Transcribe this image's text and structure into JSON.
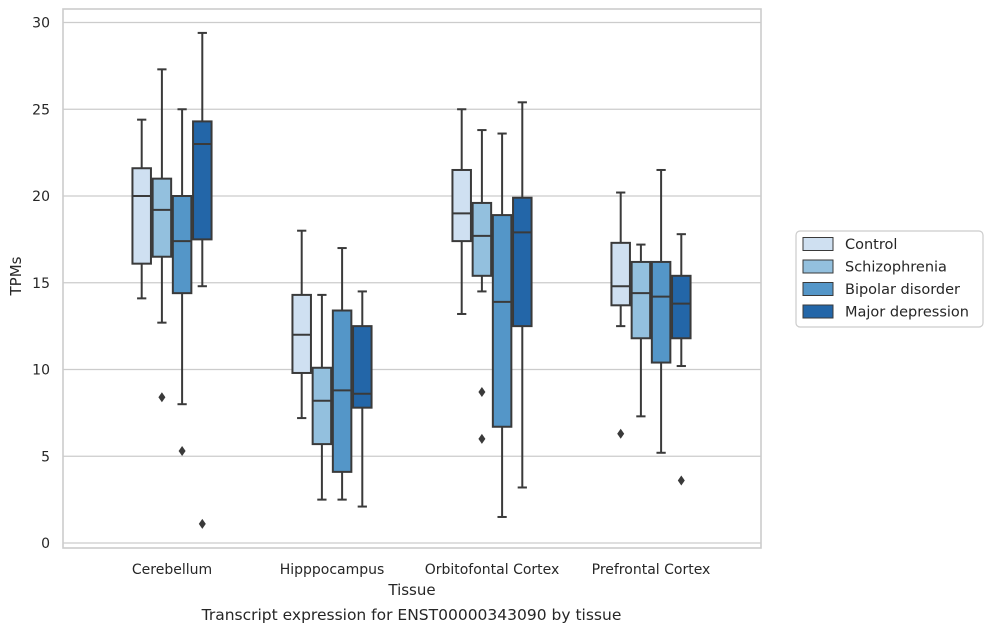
{
  "chart_data": {
    "type": "box",
    "xlabel": "Tissue",
    "ylabel": "TPMs",
    "ylim": [
      0,
      30
    ],
    "yticks": [
      0,
      5,
      10,
      15,
      20,
      25,
      30
    ],
    "grid": true,
    "legend_position": "right",
    "categories": [
      "Cerebellum",
      "Hipppocampus",
      "Orbitofontal Cortex",
      "Prefrontal Cortex"
    ],
    "series": [
      {
        "name": "Control",
        "color": "#cfe0f1",
        "boxes": [
          {
            "whislo": 14.1,
            "q1": 16.1,
            "med": 20.0,
            "q3": 21.6,
            "whishi": 24.4,
            "fliers": []
          },
          {
            "whislo": 7.2,
            "q1": 9.8,
            "med": 12.0,
            "q3": 14.3,
            "whishi": 18.0,
            "fliers": []
          },
          {
            "whislo": 13.2,
            "q1": 17.4,
            "med": 19.0,
            "q3": 21.5,
            "whishi": 25.0,
            "fliers": []
          },
          {
            "whislo": 12.5,
            "q1": 13.7,
            "med": 14.8,
            "q3": 17.3,
            "whishi": 20.2,
            "fliers": [
              6.3
            ]
          }
        ]
      },
      {
        "name": "Schizophrenia",
        "color": "#93c0de",
        "boxes": [
          {
            "whislo": 12.7,
            "q1": 16.5,
            "med": 19.2,
            "q3": 21.0,
            "whishi": 27.3,
            "fliers": [
              8.4
            ]
          },
          {
            "whislo": 2.5,
            "q1": 5.7,
            "med": 8.2,
            "q3": 10.1,
            "whishi": 14.3,
            "fliers": []
          },
          {
            "whislo": 14.5,
            "q1": 15.4,
            "med": 17.7,
            "q3": 19.6,
            "whishi": 23.8,
            "fliers": [
              8.7,
              6.0
            ]
          },
          {
            "whislo": 7.3,
            "q1": 11.8,
            "med": 14.4,
            "q3": 16.2,
            "whishi": 17.2,
            "fliers": []
          }
        ]
      },
      {
        "name": "Bipolar disorder",
        "color": "#5496c8",
        "boxes": [
          {
            "whislo": 8.0,
            "q1": 14.4,
            "med": 17.4,
            "q3": 20.0,
            "whishi": 25.0,
            "fliers": [
              5.3
            ]
          },
          {
            "whislo": 2.5,
            "q1": 4.1,
            "med": 8.8,
            "q3": 13.4,
            "whishi": 17.0,
            "fliers": []
          },
          {
            "whislo": 1.5,
            "q1": 6.7,
            "med": 13.9,
            "q3": 18.9,
            "whishi": 23.6,
            "fliers": []
          },
          {
            "whislo": 5.2,
            "q1": 10.4,
            "med": 14.2,
            "q3": 16.2,
            "whishi": 21.5,
            "fliers": []
          }
        ]
      },
      {
        "name": "Major depression",
        "color": "#2366a8",
        "boxes": [
          {
            "whislo": 14.8,
            "q1": 17.5,
            "med": 23.0,
            "q3": 24.3,
            "whishi": 29.4,
            "fliers": [
              1.1
            ]
          },
          {
            "whislo": 2.1,
            "q1": 7.8,
            "med": 8.6,
            "q3": 12.5,
            "whishi": 14.5,
            "fliers": []
          },
          {
            "whislo": 3.2,
            "q1": 12.5,
            "med": 17.9,
            "q3": 19.9,
            "whishi": 25.4,
            "fliers": []
          },
          {
            "whislo": 10.2,
            "q1": 11.8,
            "med": 13.8,
            "q3": 15.4,
            "whishi": 17.8,
            "fliers": [
              3.6
            ]
          }
        ]
      }
    ],
    "caption": "Transcript expression for ENST00000343090 by tissue"
  }
}
